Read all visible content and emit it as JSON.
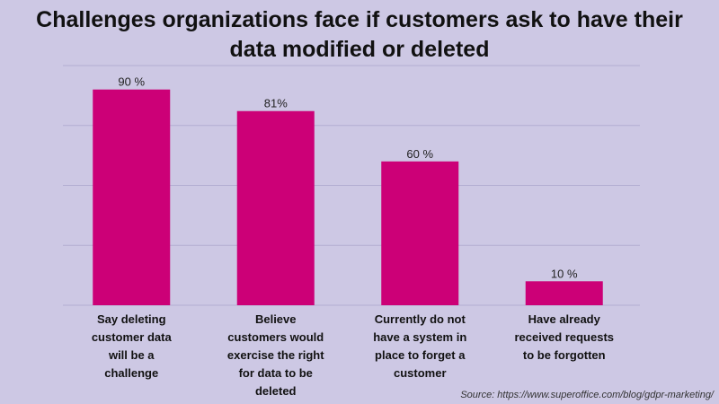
{
  "chart_data": {
    "type": "bar",
    "title_lines": [
      "Challenges organizations face if customers ask to have their",
      "data modified or deleted"
    ],
    "categories": [
      [
        "Say deleting",
        "customer data",
        "will be a",
        "challenge"
      ],
      [
        "Believe",
        "customers would",
        "exercise the right",
        "for data to be",
        "deleted"
      ],
      [
        "Currently do not",
        "have a system in",
        "place to forget a",
        "customer"
      ],
      [
        "Have already",
        "received requests",
        "to be forgotten"
      ]
    ],
    "values": [
      90,
      81,
      60,
      10
    ],
    "value_labels": [
      "90 %",
      "81%",
      "60 %",
      "10 %"
    ],
    "ylim": [
      0,
      100
    ],
    "grid": true,
    "bar_color": "#cc0077"
  },
  "source": "Source: https://www.superoffice.com/blog/gdpr-marketing/"
}
